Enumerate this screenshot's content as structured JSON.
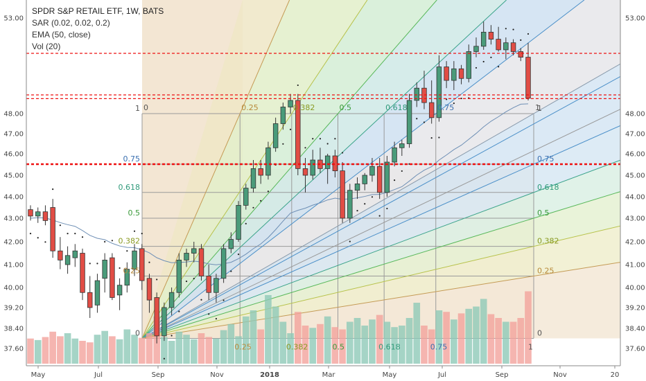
{
  "legend": {
    "title": "SPDR S&P RETAIL ETF, 1W, BATS",
    "sar": "SAR (0.02, 0.02, 0.2)",
    "ema": "EMA (50, close)",
    "vol": "Vol (20)"
  },
  "chart_data": {
    "type": "candlestick",
    "title": "SPDR S&P RETAIL ETF, 1W, BATS",
    "x_tick_labels": [
      "May",
      "Jul",
      "Sep",
      "Nov",
      "2018",
      "Mar",
      "May",
      "Jul",
      "Sep",
      "Nov",
      "20"
    ],
    "y_tick_labels": [
      "37.60",
      "38.40",
      "39.20",
      "40.00",
      "41.00",
      "42.00",
      "43.00",
      "44.00",
      "45.00",
      "46.00",
      "47.00",
      "48.00",
      "53.00"
    ],
    "ylim": [
      37.2,
      53.5
    ],
    "horizontal_levels": [
      {
        "label": "51.00",
        "value": 51.0,
        "color": "#ee1111"
      },
      {
        "label": "48.85",
        "value": 48.85,
        "color": "#ee1111"
      },
      {
        "label": "48.68",
        "value": 48.68,
        "color": "#ee1111"
      },
      {
        "label": "45.50",
        "value": 45.5,
        "color": "#ee1111"
      }
    ],
    "fib_grid": {
      "price_levels": [
        {
          "label": "1",
          "value": 48.0
        },
        {
          "label": "0.75",
          "value": 45.5
        },
        {
          "label": "0.618",
          "value": 44.2
        },
        {
          "label": "0.5",
          "value": 43.0
        },
        {
          "label": "0.382",
          "value": 41.8
        },
        {
          "label": "0.25",
          "value": 40.5
        },
        {
          "label": "0",
          "value": 38.0
        }
      ],
      "time_levels_top": [
        "0",
        "0.25",
        "0.382",
        "0.5",
        "0.618",
        "0.75",
        "1"
      ],
      "time_levels_bottom": [
        "0.25",
        "0.382",
        "0.5",
        "0.618",
        "0.75",
        "1"
      ]
    },
    "candles": [
      [
        43.4,
        43.6,
        42.9,
        43.1
      ],
      [
        43.1,
        43.5,
        42.8,
        43.3
      ],
      [
        43.3,
        43.6,
        42.7,
        42.9
      ],
      [
        43.5,
        43.9,
        41.3,
        41.6
      ],
      [
        41.6,
        42.2,
        40.8,
        41.2
      ],
      [
        41.0,
        41.8,
        40.6,
        41.4
      ],
      [
        41.3,
        41.9,
        40.9,
        41.6
      ],
      [
        41.5,
        41.7,
        39.5,
        39.8
      ],
      [
        39.8,
        40.5,
        38.8,
        39.2
      ],
      [
        39.3,
        40.6,
        39.0,
        40.3
      ],
      [
        40.4,
        41.5,
        39.8,
        41.2
      ],
      [
        41.3,
        41.5,
        39.5,
        39.6
      ],
      [
        39.7,
        40.4,
        39.1,
        40.1
      ],
      [
        40.1,
        41.1,
        39.8,
        40.8
      ],
      [
        40.8,
        41.9,
        40.5,
        41.6
      ],
      [
        41.7,
        41.9,
        39.9,
        40.3
      ],
      [
        40.4,
        40.6,
        39.0,
        39.5
      ],
      [
        39.6,
        39.8,
        37.8,
        38.1
      ],
      [
        38.1,
        39.4,
        37.9,
        39.2
      ],
      [
        39.2,
        40.0,
        38.9,
        39.8
      ],
      [
        39.8,
        41.5,
        39.6,
        41.2
      ],
      [
        41.2,
        41.7,
        40.9,
        41.5
      ],
      [
        41.5,
        42.0,
        41.1,
        41.7
      ],
      [
        41.7,
        41.9,
        40.3,
        40.5
      ],
      [
        40.5,
        41.0,
        39.5,
        39.8
      ],
      [
        39.8,
        40.6,
        39.4,
        40.4
      ],
      [
        40.4,
        41.9,
        40.2,
        41.7
      ],
      [
        41.7,
        42.4,
        41.5,
        42.1
      ],
      [
        42.1,
        43.8,
        42.0,
        43.6
      ],
      [
        43.6,
        44.6,
        43.4,
        44.4
      ],
      [
        44.4,
        45.7,
        44.2,
        45.3
      ],
      [
        45.3,
        45.7,
        44.6,
        45.0
      ],
      [
        45.0,
        46.6,
        44.8,
        46.3
      ],
      [
        46.3,
        47.8,
        46.1,
        47.5
      ],
      [
        47.5,
        48.5,
        47.2,
        48.3
      ],
      [
        48.3,
        48.9,
        48.0,
        48.6
      ],
      [
        48.6,
        48.9,
        45.0,
        45.3
      ],
      [
        45.3,
        45.8,
        44.2,
        45.0
      ],
      [
        45.0,
        46.2,
        44.8,
        45.7
      ],
      [
        45.7,
        46.3,
        45.1,
        45.3
      ],
      [
        45.3,
        46.0,
        44.6,
        45.9
      ],
      [
        45.9,
        46.2,
        44.9,
        45.2
      ],
      [
        45.2,
        45.6,
        42.8,
        43.0
      ],
      [
        43.0,
        44.6,
        42.8,
        44.3
      ],
      [
        44.3,
        44.9,
        43.9,
        44.6
      ],
      [
        44.6,
        45.1,
        44.3,
        45.0
      ],
      [
        45.0,
        45.8,
        44.7,
        45.4
      ],
      [
        45.4,
        45.8,
        43.9,
        44.2
      ],
      [
        44.2,
        45.9,
        44.0,
        45.6
      ],
      [
        45.6,
        46.6,
        45.4,
        46.3
      ],
      [
        46.3,
        46.7,
        45.9,
        46.5
      ],
      [
        46.5,
        48.9,
        46.3,
        48.6
      ],
      [
        48.6,
        49.5,
        48.3,
        49.2
      ],
      [
        49.2,
        50.1,
        48.2,
        48.5
      ],
      [
        48.5,
        49.6,
        47.5,
        47.8
      ],
      [
        47.8,
        50.9,
        47.6,
        50.3
      ],
      [
        50.3,
        50.6,
        49.2,
        49.6
      ],
      [
        49.6,
        50.6,
        49.1,
        50.2
      ],
      [
        50.2,
        50.4,
        49.4,
        49.7
      ],
      [
        49.7,
        51.5,
        49.5,
        51.1
      ],
      [
        51.1,
        51.9,
        50.8,
        51.4
      ],
      [
        51.4,
        52.8,
        51.2,
        52.2
      ],
      [
        52.2,
        52.6,
        51.5,
        51.8
      ],
      [
        51.8,
        52.5,
        51.1,
        51.2
      ],
      [
        51.2,
        51.9,
        50.7,
        51.6
      ],
      [
        51.6,
        51.8,
        50.9,
        51.1
      ],
      [
        51.1,
        51.3,
        50.6,
        50.8
      ],
      [
        50.8,
        51.6,
        48.6,
        48.7
      ]
    ],
    "volume_heights": [
      0.33,
      0.31,
      0.35,
      0.42,
      0.36,
      0.4,
      0.33,
      0.3,
      0.28,
      0.38,
      0.43,
      0.36,
      0.32,
      0.45,
      0.38,
      0.34,
      0.4,
      0.62,
      0.35,
      0.3,
      0.42,
      0.38,
      0.32,
      0.4,
      0.35,
      0.33,
      0.44,
      0.52,
      0.36,
      0.62,
      0.7,
      0.45,
      0.9,
      0.75,
      0.55,
      0.4,
      0.68,
      0.5,
      0.47,
      0.52,
      0.62,
      0.48,
      0.45,
      0.55,
      0.6,
      0.5,
      0.58,
      0.64,
      0.55,
      0.48,
      0.5,
      0.6,
      0.8,
      0.5,
      0.45,
      0.7,
      0.68,
      0.58,
      0.66,
      0.72,
      0.75,
      0.85,
      0.65,
      0.6,
      0.55,
      0.55,
      0.6,
      0.95
    ]
  },
  "colors": {
    "up": "#4a9b7a",
    "down": "#e14d45",
    "ema": "#6e8fb5",
    "sar": "#222222",
    "level": "#ee1111"
  }
}
